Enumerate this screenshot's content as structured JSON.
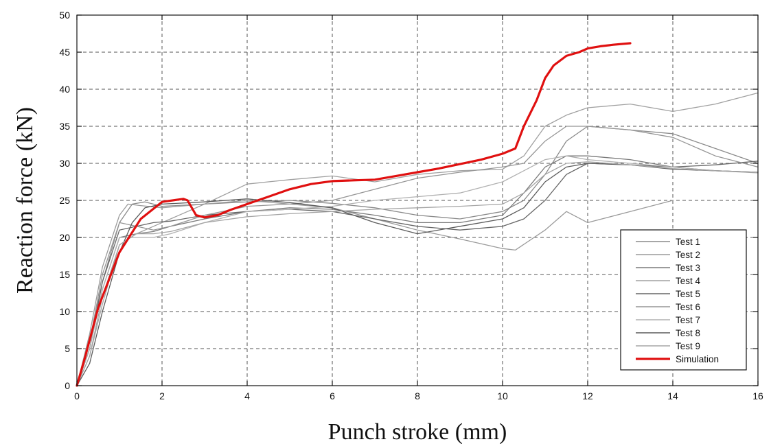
{
  "chart_data": {
    "type": "line",
    "xlabel": "Punch stroke (mm)",
    "ylabel": "Reaction force (kN)",
    "xlim": [
      0,
      16
    ],
    "ylim": [
      0,
      50
    ],
    "x_ticks": [
      "0",
      "2",
      "4",
      "6",
      "8",
      "10",
      "12",
      "14",
      "16"
    ],
    "y_ticks": [
      "0",
      "5",
      "10",
      "15",
      "20",
      "25",
      "30",
      "35",
      "40",
      "45",
      "50"
    ],
    "grid": true,
    "grid_style": "dashed",
    "legend_position": "bottom-right",
    "series": [
      {
        "name": "Test 1",
        "color": "#8a8a8a",
        "x": [
          0,
          0.3,
          0.6,
          1.0,
          1.3,
          1.6,
          2.0,
          3,
          4,
          5,
          6,
          7,
          8,
          9,
          10,
          10.5,
          11,
          11.5,
          12,
          13,
          14,
          15,
          16
        ],
        "y": [
          0,
          6,
          14,
          22,
          24.5,
          24.8,
          24.2,
          24.5,
          24.8,
          25,
          24.6,
          24,
          23,
          22.5,
          23.5,
          25,
          28.5,
          33,
          35,
          34.5,
          34,
          32,
          30
        ]
      },
      {
        "name": "Test 2",
        "color": "#9a9a9a",
        "x": [
          0,
          0.3,
          0.6,
          1.0,
          1.2,
          1.5,
          2.0,
          3,
          4,
          5,
          6,
          7,
          8,
          9,
          10,
          10.3,
          11,
          11.5,
          12,
          13,
          14,
          15,
          16
        ],
        "y": [
          0,
          7,
          16,
          23,
          24.5,
          24.3,
          24,
          24.5,
          25,
          24.5,
          24,
          22.5,
          21,
          19.8,
          18.5,
          18.3,
          21,
          23.5,
          22,
          23.5,
          25,
          null,
          null
        ]
      },
      {
        "name": "Test 3",
        "color": "#7a7a7a",
        "x": [
          0,
          0.3,
          0.6,
          1.0,
          1.4,
          1.8,
          2.2,
          3,
          4,
          5,
          6,
          7,
          8,
          9,
          10,
          10.5,
          11,
          11.5,
          12,
          13,
          14,
          15,
          16
        ],
        "y": [
          0,
          5,
          13,
          20,
          20.5,
          20.8,
          21.5,
          22.5,
          23.5,
          24,
          23.8,
          23,
          22,
          22,
          23,
          26,
          29.5,
          31,
          31,
          30.5,
          29.5,
          29,
          28.8
        ]
      },
      {
        "name": "Test 4",
        "color": "#a0a0a0",
        "x": [
          0,
          0.3,
          0.6,
          1.0,
          1.4,
          1.8,
          2.2,
          3,
          4,
          5,
          6,
          7,
          8,
          9,
          10,
          10.5,
          11,
          11.5,
          12,
          13,
          14,
          15,
          16
        ],
        "y": [
          0,
          4,
          12,
          19,
          20.5,
          21.5,
          22.5,
          24.5,
          27.2,
          27.8,
          28.3,
          27.5,
          28.5,
          29,
          29.2,
          31,
          35,
          36.5,
          37.5,
          38,
          37,
          38,
          39.5
        ]
      },
      {
        "name": "Test 5",
        "color": "#666666",
        "x": [
          0,
          0.3,
          0.6,
          1.0,
          1.4,
          1.8,
          2.2,
          3,
          4,
          5,
          6,
          7,
          8,
          9,
          10,
          10.5,
          11,
          11.5,
          12,
          13,
          14,
          15,
          16
        ],
        "y": [
          0,
          5,
          14,
          21,
          21.5,
          22,
          22.2,
          23,
          23.5,
          23.8,
          23.5,
          22.5,
          21.5,
          21,
          21.5,
          22.5,
          25,
          28.5,
          30,
          29.8,
          29.5,
          29.8,
          30.3
        ]
      },
      {
        "name": "Test 6",
        "color": "#959595",
        "x": [
          0,
          0.3,
          0.6,
          1.0,
          1.4,
          1.8,
          2.2,
          3,
          4,
          5,
          6,
          7,
          8,
          9,
          10,
          10.5,
          11,
          11.5,
          12,
          13,
          14,
          15,
          16
        ],
        "y": [
          0,
          6,
          15,
          22,
          21.5,
          21,
          21.5,
          23,
          24.2,
          24.5,
          25,
          26.5,
          28,
          28.8,
          29.5,
          30,
          33,
          35,
          35,
          34.5,
          33.5,
          31,
          29.5
        ]
      },
      {
        "name": "Test 7",
        "color": "#b0b0b0",
        "x": [
          0,
          0.3,
          0.6,
          1.0,
          1.4,
          1.8,
          2.2,
          3,
          4,
          5,
          6,
          7,
          8,
          9,
          10,
          10.5,
          11,
          11.5,
          12,
          13,
          14,
          15,
          16
        ],
        "y": [
          0,
          5,
          13,
          20,
          20,
          20,
          20.5,
          22,
          23.5,
          23.8,
          24.2,
          25,
          25.5,
          26,
          27.5,
          29,
          30.5,
          31,
          30.5,
          30,
          29.5,
          29,
          28.7
        ]
      },
      {
        "name": "Test 8",
        "color": "#5a5a5a",
        "x": [
          0,
          0.3,
          0.6,
          1.0,
          1.3,
          1.6,
          2.0,
          3,
          4,
          5,
          6,
          7,
          8,
          9,
          10,
          10.5,
          11,
          11.5,
          12,
          13,
          14,
          15,
          16
        ],
        "y": [
          0,
          3,
          10,
          18,
          22,
          24,
          24.5,
          24.8,
          25.2,
          24.7,
          24,
          22,
          20.5,
          21.5,
          22.5,
          24,
          27.5,
          29.5,
          30,
          29.8,
          29.2,
          29,
          28.8
        ]
      },
      {
        "name": "Test 9",
        "color": "#a5a5a5",
        "x": [
          0,
          0.3,
          0.6,
          1.0,
          1.4,
          1.8,
          2.2,
          3,
          4,
          5,
          6,
          7,
          8,
          9,
          10,
          10.5,
          11,
          11.5,
          12,
          13,
          14,
          15,
          16
        ],
        "y": [
          0,
          4,
          11,
          19,
          20.5,
          20.5,
          20.8,
          22,
          22.8,
          23.2,
          23.5,
          23.8,
          24,
          24.2,
          24.5,
          26,
          28.5,
          30,
          30.2,
          29.8,
          29.3,
          29,
          28.8
        ]
      },
      {
        "name": "Simulation",
        "color": "#e01010",
        "x": [
          0,
          0.2,
          0.5,
          1.0,
          1.5,
          2.0,
          2.5,
          2.6,
          2.8,
          3.0,
          3.3,
          3.6,
          4.0,
          4.5,
          5.0,
          5.5,
          6.0,
          6.5,
          7.0,
          7.5,
          8.0,
          8.5,
          9.0,
          9.5,
          10.0,
          10.3,
          10.5,
          10.8,
          11.0,
          11.2,
          11.5,
          11.8,
          12.0,
          12.3,
          12.6,
          13.0
        ],
        "y": [
          0,
          4,
          10.5,
          18,
          22.5,
          24.8,
          25.2,
          25,
          23,
          22.7,
          23,
          23.7,
          24.5,
          25.5,
          26.5,
          27.2,
          27.6,
          27.7,
          27.8,
          28.3,
          28.8,
          29.3,
          29.9,
          30.5,
          31.3,
          32,
          35,
          38.5,
          41.5,
          43.2,
          44.5,
          45,
          45.5,
          45.8,
          46,
          46.2
        ]
      }
    ]
  }
}
